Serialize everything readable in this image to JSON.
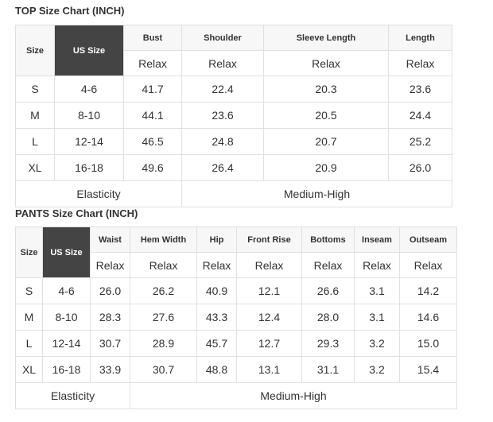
{
  "top": {
    "title": "TOP Size Chart (INCH)",
    "size_header": "Size",
    "us_header": "US Size",
    "columns": [
      "Bust",
      "Shoulder",
      "Sleeve Length",
      "Length"
    ],
    "sub": "Relax",
    "rows": [
      [
        "S",
        "4-6",
        "41.7",
        "22.4",
        "20.3",
        "23.6"
      ],
      [
        "M",
        "8-10",
        "44.1",
        "23.6",
        "20.5",
        "24.4"
      ],
      [
        "L",
        "12-14",
        "46.5",
        "24.8",
        "20.7",
        "25.2"
      ],
      [
        "XL",
        "16-18",
        "49.6",
        "26.4",
        "20.9",
        "26.0"
      ]
    ],
    "elasticity_label": "Elasticity",
    "elasticity_value": "Medium-High"
  },
  "pants": {
    "title": "PANTS Size Chart (INCH)",
    "size_header": "Size",
    "us_header": "US Size",
    "columns": [
      "Waist",
      "Hem Width",
      "Hip",
      "Front Rise",
      "Bottoms",
      "Inseam",
      "Outseam"
    ],
    "sub": "Relax",
    "rows": [
      [
        "S",
        "4-6",
        "26.0",
        "26.2",
        "40.9",
        "12.1",
        "26.6",
        "3.1",
        "14.2"
      ],
      [
        "M",
        "8-10",
        "28.3",
        "27.6",
        "43.3",
        "12.4",
        "28.0",
        "3.1",
        "14.6"
      ],
      [
        "L",
        "12-14",
        "30.7",
        "28.9",
        "45.7",
        "12.7",
        "29.3",
        "3.2",
        "15.0"
      ],
      [
        "XL",
        "16-18",
        "33.9",
        "30.7",
        "48.8",
        "13.1",
        "31.1",
        "3.2",
        "15.4"
      ]
    ],
    "elasticity_label": "Elasticity",
    "elasticity_value": "Medium-High"
  },
  "colors": {
    "us_header_bg": "#444444",
    "header_bg": "#f7f7f7",
    "border": "#e0e0e0"
  }
}
